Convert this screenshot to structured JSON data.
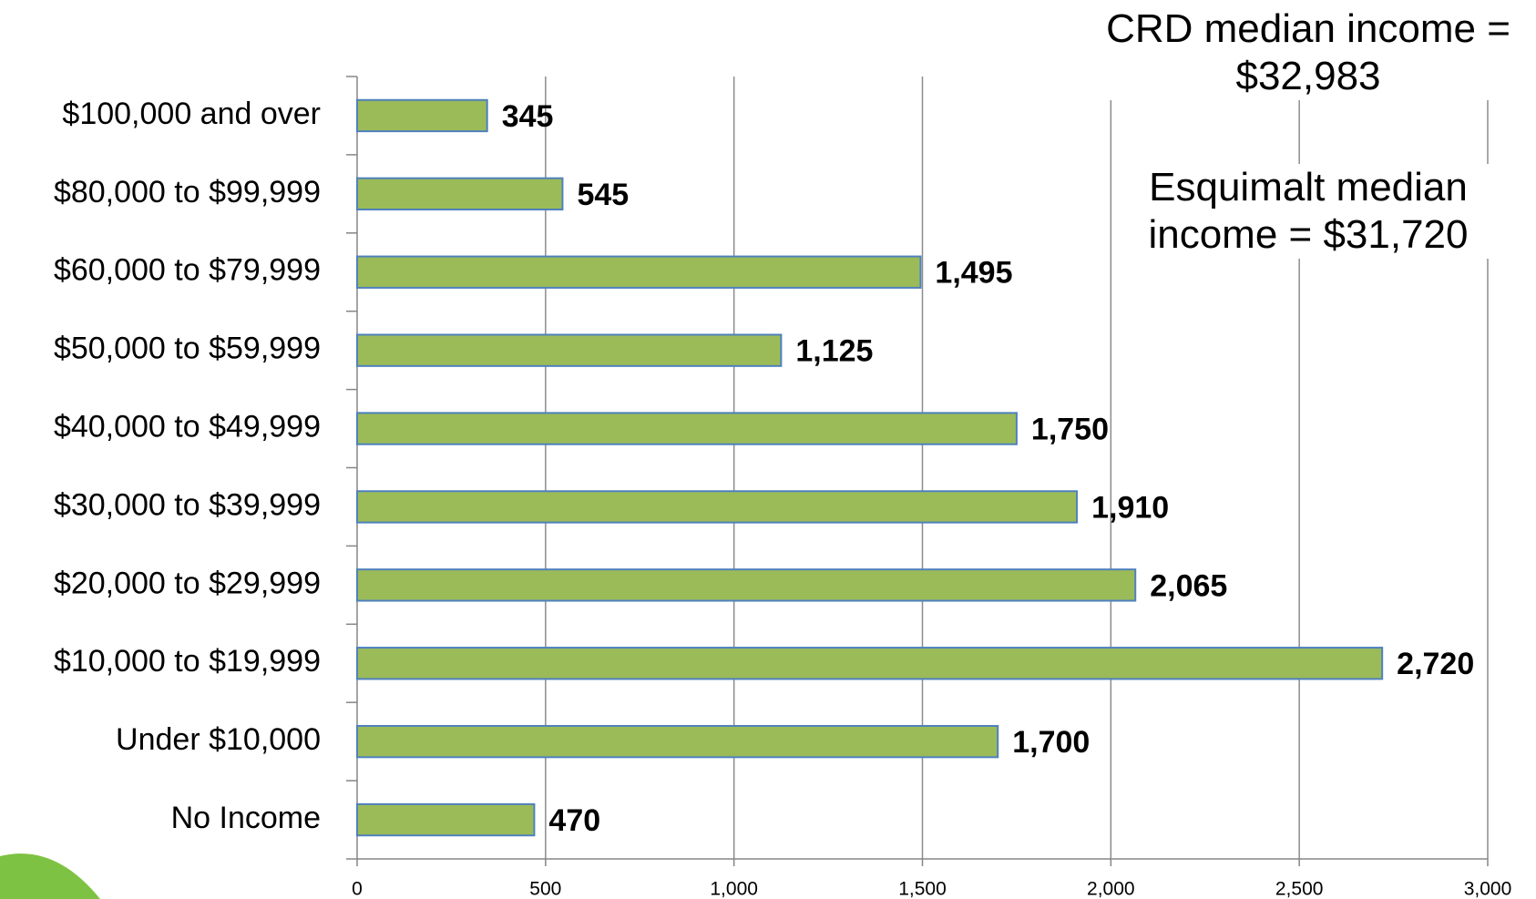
{
  "chart_data": {
    "type": "bar",
    "orientation": "horizontal",
    "categories": [
      "$100,000 and over",
      "$80,000 to $99,999",
      "$60,000 to $79,999",
      "$50,000 to $59,999",
      "$40,000 to $49,999",
      "$30,000 to $39,999",
      "$20,000 to $29,999",
      "$10,000 to $19,999",
      "Under $10,000",
      "No Income"
    ],
    "values": [
      345,
      545,
      1495,
      1125,
      1750,
      1910,
      2065,
      2720,
      1700,
      470
    ],
    "value_labels": [
      "345",
      "545",
      "1,495",
      "1,125",
      "1,750",
      "1,910",
      "2,065",
      "2,720",
      "1,700",
      "470"
    ],
    "color": "#9bbb59",
    "edge_color": "#4f81bd",
    "xlim": [
      0,
      3000
    ],
    "xticks": [
      0,
      500,
      {
        "value": 1000,
        "label": "1,000"
      },
      {
        "value": 1500,
        "label": "1,500"
      },
      {
        "value": 2000,
        "label": "2,000"
      },
      {
        "value": 2500,
        "label": "2,500"
      },
      {
        "value": 3000,
        "label": "3,000"
      }
    ],
    "grid": true,
    "annotations": [
      "CRD median income = $32,983",
      "Esquimalt median income = $31,720"
    ]
  }
}
